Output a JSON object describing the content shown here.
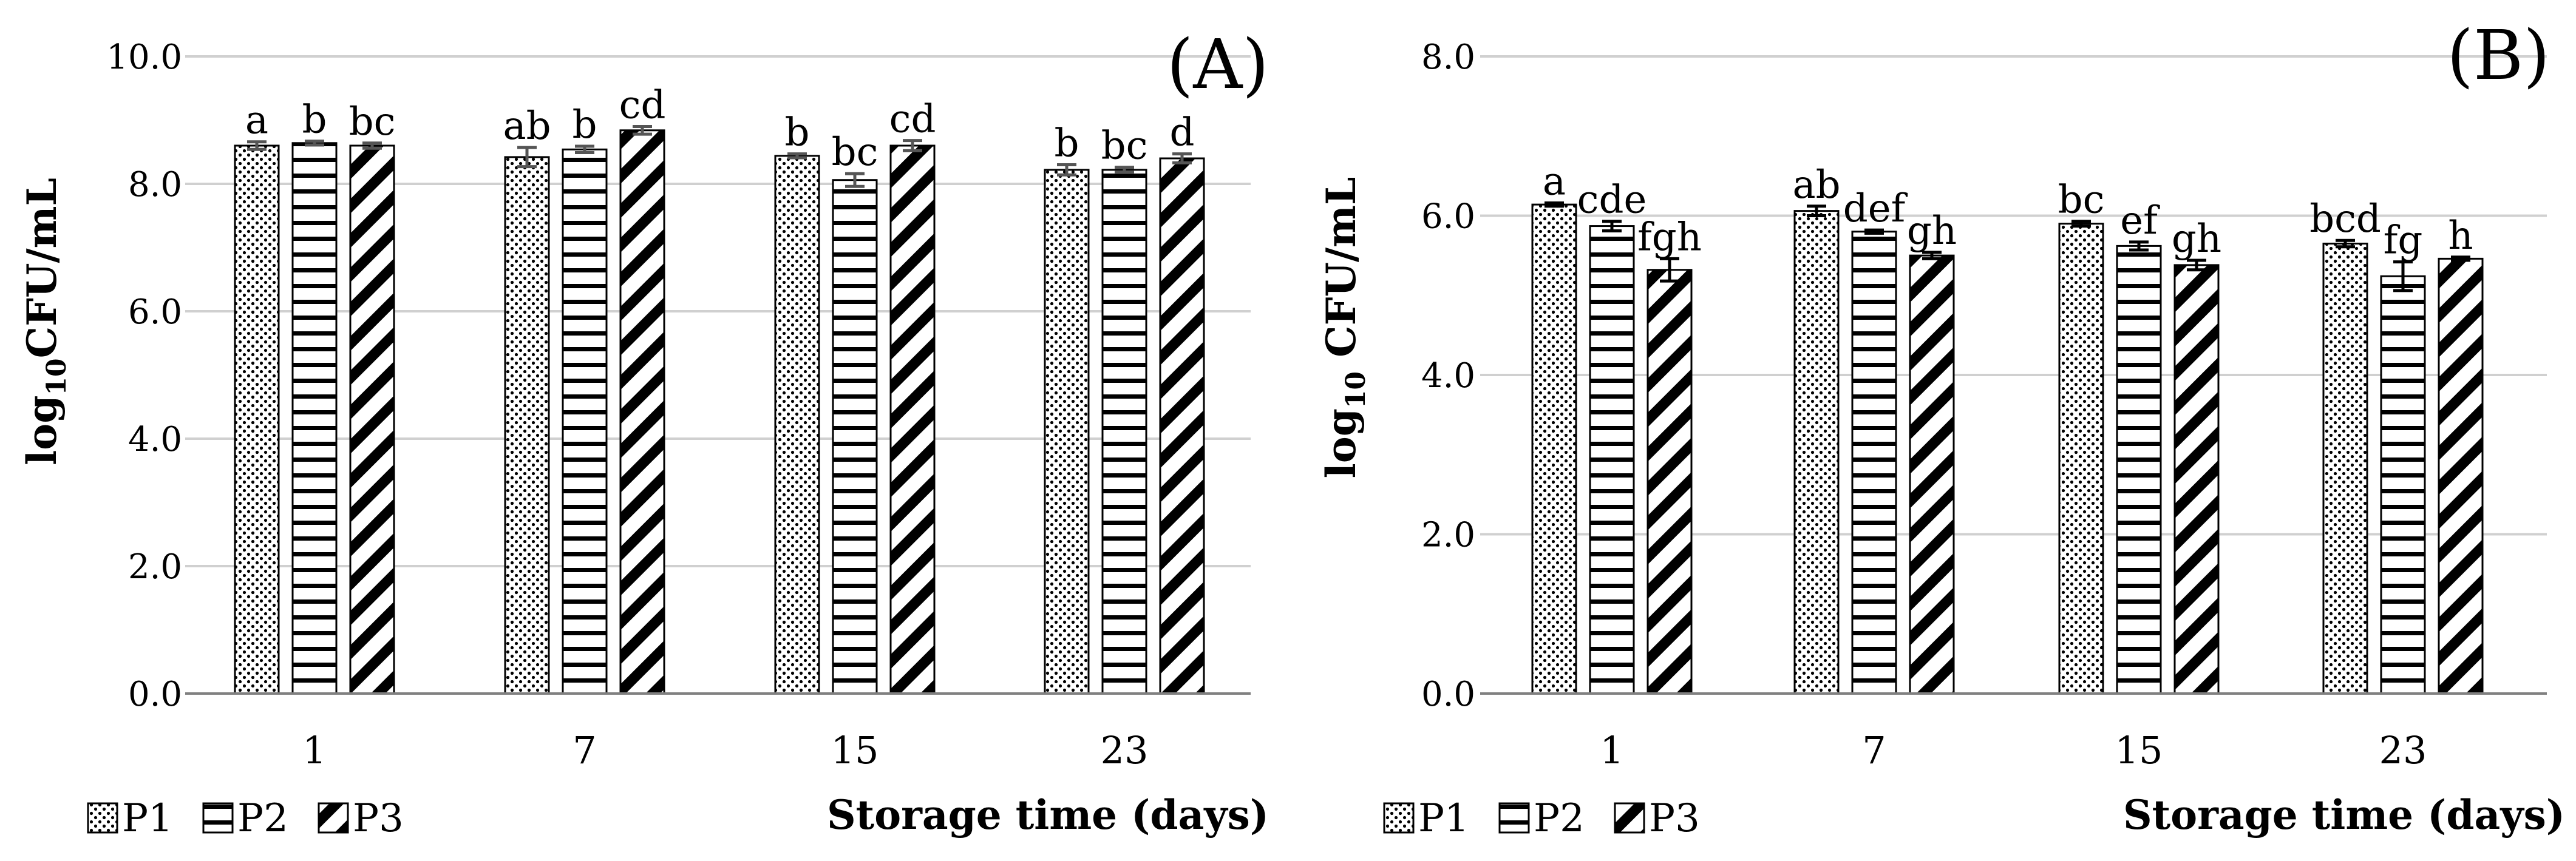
{
  "chart_data": [
    {
      "type": "bar",
      "panel_label": "(A)",
      "title": "",
      "xlabel": "Storage time (days)",
      "ylabel": {
        "prefix": "log",
        "subscript": "10",
        "suffix": "CFU/mL"
      },
      "ylim": [
        0,
        10
      ],
      "yticks": [
        "0.0",
        "2.0",
        "4.0",
        "6.0",
        "8.0",
        "10.0"
      ],
      "grid": true,
      "legend_position": "bottom-left",
      "categories": [
        "1",
        "7",
        "15",
        "23"
      ],
      "series": [
        {
          "name": "P1",
          "pattern": "dots",
          "values": [
            8.6,
            8.42,
            8.44,
            8.22
          ],
          "errors": [
            0.06,
            0.15,
            0.03,
            0.08
          ],
          "letters": [
            "a",
            "ab",
            "b",
            "b"
          ]
        },
        {
          "name": "P2",
          "pattern": "horizontal",
          "values": [
            8.64,
            8.54,
            8.06,
            8.22
          ],
          "errors": [
            0.03,
            0.05,
            0.1,
            0.04
          ],
          "letters": [
            "b",
            "b",
            "bc",
            "bc"
          ]
        },
        {
          "name": "P3",
          "pattern": "diagonal",
          "values": [
            8.6,
            8.84,
            8.6,
            8.4
          ],
          "errors": [
            0.04,
            0.06,
            0.08,
            0.07
          ],
          "letters": [
            "bc",
            "cd",
            "cd",
            "d"
          ]
        }
      ]
    },
    {
      "type": "bar",
      "panel_label": "(B)",
      "title": "",
      "xlabel": "Storage time (days)",
      "ylabel": {
        "prefix": "log",
        "subscript": "10",
        "suffix": " CFU/mL"
      },
      "ylim": [
        0,
        8
      ],
      "yticks": [
        "0.0",
        "2.0",
        "4.0",
        "6.0",
        "8.0"
      ],
      "grid": true,
      "legend_position": "bottom-left",
      "categories": [
        "1",
        "7",
        "15",
        "23"
      ],
      "series": [
        {
          "name": "P1",
          "pattern": "dots",
          "values": [
            6.14,
            6.06,
            5.9,
            5.65
          ],
          "errors": [
            0.02,
            0.06,
            0.03,
            0.04
          ],
          "letters": [
            "a",
            "ab",
            "bc",
            "bcd"
          ]
        },
        {
          "name": "P2",
          "pattern": "horizontal",
          "values": [
            5.87,
            5.8,
            5.62,
            5.24
          ],
          "errors": [
            0.06,
            0.02,
            0.05,
            0.18
          ],
          "letters": [
            "cde",
            "def",
            "ef",
            "fg"
          ]
        },
        {
          "name": "P3",
          "pattern": "diagonal",
          "values": [
            5.32,
            5.5,
            5.38,
            5.46
          ],
          "errors": [
            0.14,
            0.04,
            0.06,
            0.02
          ],
          "letters": [
            "fgh",
            "gh",
            "gh",
            "h"
          ]
        }
      ]
    }
  ],
  "colors": {
    "grid": "#d0d0d0",
    "axis": "#808080",
    "bar_stroke": "#000000",
    "error_A": "#555555",
    "error_B": "#000000"
  }
}
